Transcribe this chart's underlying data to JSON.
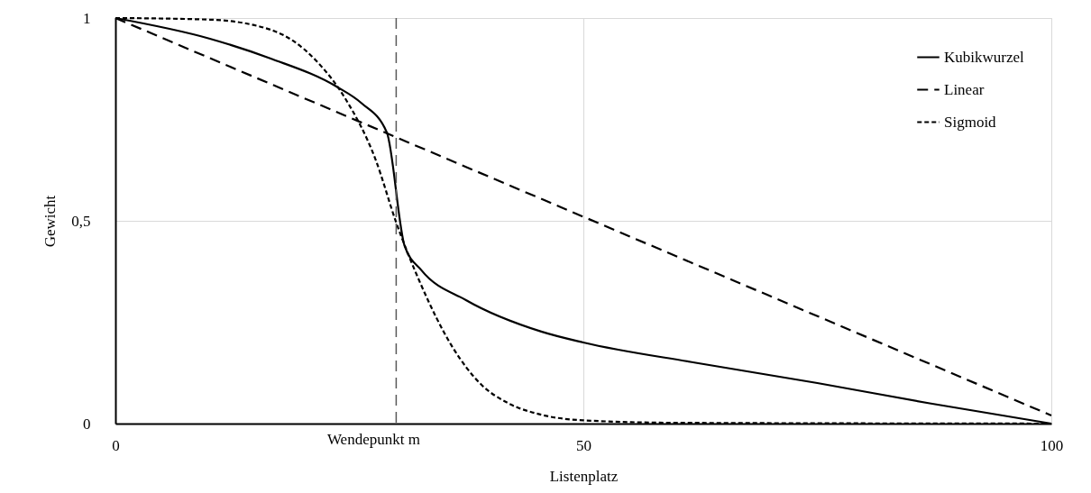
{
  "chart_data": {
    "type": "line",
    "xlabel": "Listenplatz",
    "ylabel": "Gewicht",
    "xlim": [
      0,
      100
    ],
    "ylim": [
      0,
      1
    ],
    "xticks": [
      0,
      50,
      100
    ],
    "yticks": [
      0,
      {
        "value": 0.5,
        "label": "0,5"
      },
      1
    ],
    "grid": true,
    "legend": "top right",
    "marker": "none",
    "ref_lines": [
      {
        "axis": "x",
        "value": 30,
        "label": "Wendepunkt m",
        "color": "#595959",
        "line_style": "dashed"
      }
    ],
    "series": [
      {
        "name": "Kubikwurzel",
        "color": "#000000",
        "line_style": "solid",
        "x": [
          0,
          10.1,
          16.6,
          23.7,
          26.3,
          29.0,
          30.9,
          32.7,
          37.5,
          45.5,
          50,
          62,
          75,
          87,
          100
        ],
        "values": [
          1,
          0.949,
          0.9,
          0.83,
          0.79,
          0.718,
          0.438,
          0.378,
          0.304,
          0.227,
          0.2,
          0.15,
          0.1,
          0.05,
          0
        ]
      },
      {
        "name": "Linear",
        "color": "#000000",
        "line_style": "dashed",
        "x": [
          0,
          100
        ],
        "values": [
          1,
          0.02
        ]
      },
      {
        "name": "Sigmoid",
        "color": "#000000",
        "line_style": "dotted",
        "x": [
          0,
          10.1,
          16.6,
          21.4,
          24.6,
          27.8,
          30.0,
          32.7,
          35.9,
          39.1,
          42,
          45.5,
          50,
          60,
          100
        ],
        "values": [
          1,
          0.996,
          0.971,
          0.896,
          0.8,
          0.651,
          0.496,
          0.34,
          0.193,
          0.096,
          0.05,
          0.022,
          0.008,
          0.002,
          0
        ]
      }
    ]
  }
}
